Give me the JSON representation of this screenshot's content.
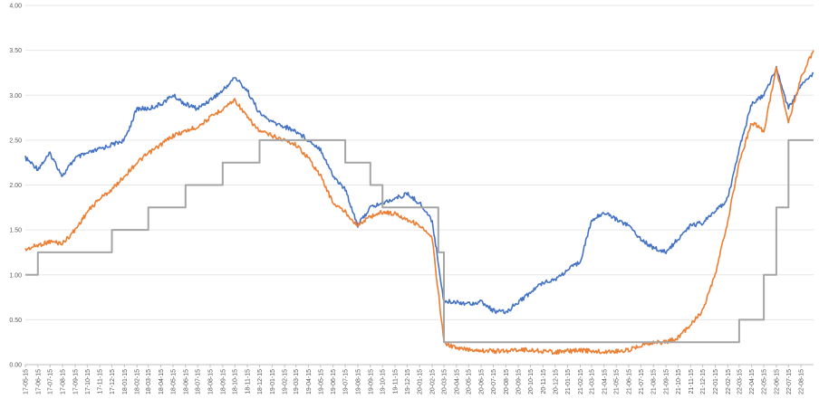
{
  "chart_data": {
    "type": "line",
    "title": "",
    "xlabel": "",
    "ylabel": "",
    "ylim": [
      0,
      4
    ],
    "yticks": [
      "0.00",
      "0.50",
      "1.00",
      "1.50",
      "2.00",
      "2.50",
      "3.00",
      "3.50",
      "4.00"
    ],
    "grid": true,
    "legend": "none",
    "x_tick_labels": [
      "2017-05-15",
      "2017-06-15",
      "2017-07-15",
      "2017-08-15",
      "2017-09-15",
      "2017-10-15",
      "2017-11-15",
      "2017-12-15",
      "2018-01-15",
      "2018-02-15",
      "2018-03-15",
      "2018-04-15",
      "2018-05-15",
      "2018-06-15",
      "2018-07-15",
      "2018-08-15",
      "2018-09-15",
      "2018-10-15",
      "2018-11-15",
      "2018-12-15",
      "2019-01-15",
      "2019-02-15",
      "2019-03-15",
      "2019-04-15",
      "2019-05-15",
      "2019-06-15",
      "2019-07-15",
      "2019-08-15",
      "2019-09-15",
      "2019-10-15",
      "2019-11-15",
      "2019-12-15",
      "2020-01-15",
      "2020-02-15",
      "2020-03-15",
      "2020-04-15",
      "2020-05-15",
      "2020-06-15",
      "2020-07-15",
      "2020-08-15",
      "2020-09-15",
      "2020-10-15",
      "2020-11-15",
      "2020-12-15",
      "2021-01-15",
      "2021-02-15",
      "2021-03-15",
      "2021-04-15",
      "2021-05-15",
      "2021-06-15",
      "2021-07-15",
      "2021-08-15",
      "2021-09-15",
      "2021-10-15",
      "2021-11-15",
      "2021-12-15",
      "2022-01-15",
      "2022-02-15",
      "2022-03-15",
      "2022-04-15",
      "2022-05-15",
      "2022-06-15",
      "2022-07-15",
      "2022-08-15"
    ],
    "series": [
      {
        "color": "#4472c4",
        "x": [
          "2017-05-15",
          "2017-06-15",
          "2017-07-15",
          "2017-08-15",
          "2017-09-15",
          "2017-10-15",
          "2017-11-15",
          "2017-12-15",
          "2018-01-15",
          "2018-02-15",
          "2018-03-15",
          "2018-04-15",
          "2018-05-15",
          "2018-06-15",
          "2018-07-15",
          "2018-08-15",
          "2018-09-15",
          "2018-10-15",
          "2018-11-15",
          "2018-12-15",
          "2019-01-15",
          "2019-02-15",
          "2019-03-15",
          "2019-04-15",
          "2019-05-15",
          "2019-06-15",
          "2019-07-15",
          "2019-08-15",
          "2019-09-15",
          "2019-10-15",
          "2019-11-15",
          "2019-12-15",
          "2020-01-15",
          "2020-02-15",
          "2020-03-15",
          "2020-04-15",
          "2020-05-15",
          "2020-06-15",
          "2020-07-15",
          "2020-08-15",
          "2020-09-15",
          "2020-10-15",
          "2020-11-15",
          "2020-12-15",
          "2021-01-15",
          "2021-02-15",
          "2021-03-15",
          "2021-04-15",
          "2021-05-15",
          "2021-06-15",
          "2021-07-15",
          "2021-08-15",
          "2021-09-15",
          "2021-10-15",
          "2021-11-15",
          "2021-12-15",
          "2022-01-15",
          "2022-02-15",
          "2022-03-15",
          "2022-04-15",
          "2022-05-15",
          "2022-06-15",
          "2022-07-15",
          "2022-08-15",
          "2022-09-15"
        ],
        "values": [
          2.3,
          2.18,
          2.35,
          2.1,
          2.3,
          2.35,
          2.4,
          2.45,
          2.5,
          2.85,
          2.85,
          2.9,
          3.0,
          2.9,
          2.85,
          2.95,
          3.05,
          3.2,
          3.05,
          2.8,
          2.7,
          2.65,
          2.6,
          2.5,
          2.4,
          2.1,
          1.95,
          1.55,
          1.75,
          1.8,
          1.85,
          1.9,
          1.8,
          1.6,
          0.7,
          0.7,
          0.68,
          0.7,
          0.6,
          0.58,
          0.7,
          0.8,
          0.92,
          0.95,
          1.05,
          1.15,
          1.6,
          1.7,
          1.62,
          1.55,
          1.4,
          1.3,
          1.25,
          1.4,
          1.55,
          1.58,
          1.7,
          1.85,
          2.4,
          2.9,
          3.0,
          3.3,
          2.85,
          3.1,
          3.25
        ]
      },
      {
        "color": "#ed7d31",
        "x": [
          "2017-05-15",
          "2017-06-15",
          "2017-07-15",
          "2017-08-15",
          "2017-09-15",
          "2017-10-15",
          "2017-11-15",
          "2017-12-15",
          "2018-01-15",
          "2018-02-15",
          "2018-03-15",
          "2018-04-15",
          "2018-05-15",
          "2018-06-15",
          "2018-07-15",
          "2018-08-15",
          "2018-09-15",
          "2018-10-15",
          "2018-11-15",
          "2018-12-15",
          "2019-01-15",
          "2019-02-15",
          "2019-03-15",
          "2019-04-15",
          "2019-05-15",
          "2019-06-15",
          "2019-07-15",
          "2019-08-15",
          "2019-09-15",
          "2019-10-15",
          "2019-11-15",
          "2019-12-15",
          "2020-01-15",
          "2020-02-15",
          "2020-03-15",
          "2020-04-15",
          "2020-05-15",
          "2020-06-15",
          "2020-07-15",
          "2020-08-15",
          "2020-09-15",
          "2020-10-15",
          "2020-11-15",
          "2020-12-15",
          "2021-01-15",
          "2021-02-15",
          "2021-03-15",
          "2021-04-15",
          "2021-05-15",
          "2021-06-15",
          "2021-07-15",
          "2021-08-15",
          "2021-09-15",
          "2021-10-15",
          "2021-11-15",
          "2021-12-15",
          "2022-01-15",
          "2022-02-15",
          "2022-03-15",
          "2022-04-15",
          "2022-05-15",
          "2022-06-15",
          "2022-07-15",
          "2022-08-15",
          "2022-09-15"
        ],
        "values": [
          1.28,
          1.33,
          1.37,
          1.35,
          1.5,
          1.7,
          1.85,
          1.95,
          2.1,
          2.25,
          2.35,
          2.45,
          2.55,
          2.6,
          2.65,
          2.75,
          2.85,
          2.95,
          2.75,
          2.6,
          2.55,
          2.5,
          2.45,
          2.3,
          2.1,
          1.8,
          1.7,
          1.55,
          1.65,
          1.7,
          1.68,
          1.62,
          1.55,
          1.4,
          0.25,
          0.18,
          0.17,
          0.16,
          0.15,
          0.15,
          0.17,
          0.16,
          0.15,
          0.14,
          0.15,
          0.16,
          0.15,
          0.14,
          0.15,
          0.16,
          0.22,
          0.25,
          0.25,
          0.3,
          0.45,
          0.6,
          1.0,
          1.6,
          2.25,
          2.7,
          2.6,
          3.3,
          2.7,
          3.2,
          3.5
        ]
      },
      {
        "color": "#a5a5a5",
        "step": true,
        "x": [
          "2017-05-15",
          "2017-06-15",
          "2017-12-15",
          "2018-03-15",
          "2018-06-15",
          "2018-09-15",
          "2018-12-15",
          "2019-07-15",
          "2019-09-15",
          "2019-10-15",
          "2020-03-01",
          "2020-03-15",
          "2022-03-15",
          "2022-05-15",
          "2022-06-15",
          "2022-07-15",
          "2022-09-15"
        ],
        "values": [
          1.0,
          1.25,
          1.5,
          1.75,
          2.0,
          2.25,
          2.5,
          2.25,
          2.0,
          1.75,
          1.25,
          0.25,
          0.5,
          1.0,
          1.75,
          2.5,
          2.5
        ]
      }
    ]
  }
}
